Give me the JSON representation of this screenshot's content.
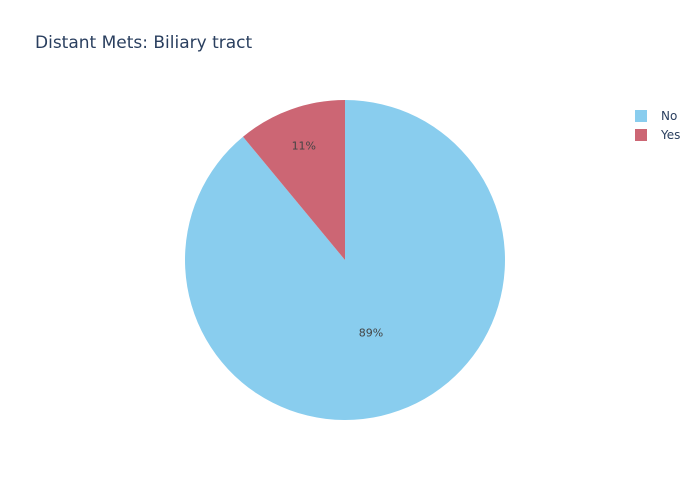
{
  "chart_data": {
    "type": "pie",
    "title": "Distant Mets: Biliary tract",
    "slices": [
      {
        "label": "No",
        "value": 89,
        "text": "89%",
        "color": "#89CDEE"
      },
      {
        "label": "Yes",
        "value": 11,
        "text": "11%",
        "color": "#CC6674"
      }
    ],
    "start_angle_deg": 0,
    "direction": "counterclockwise",
    "legend_position": "top-right"
  }
}
